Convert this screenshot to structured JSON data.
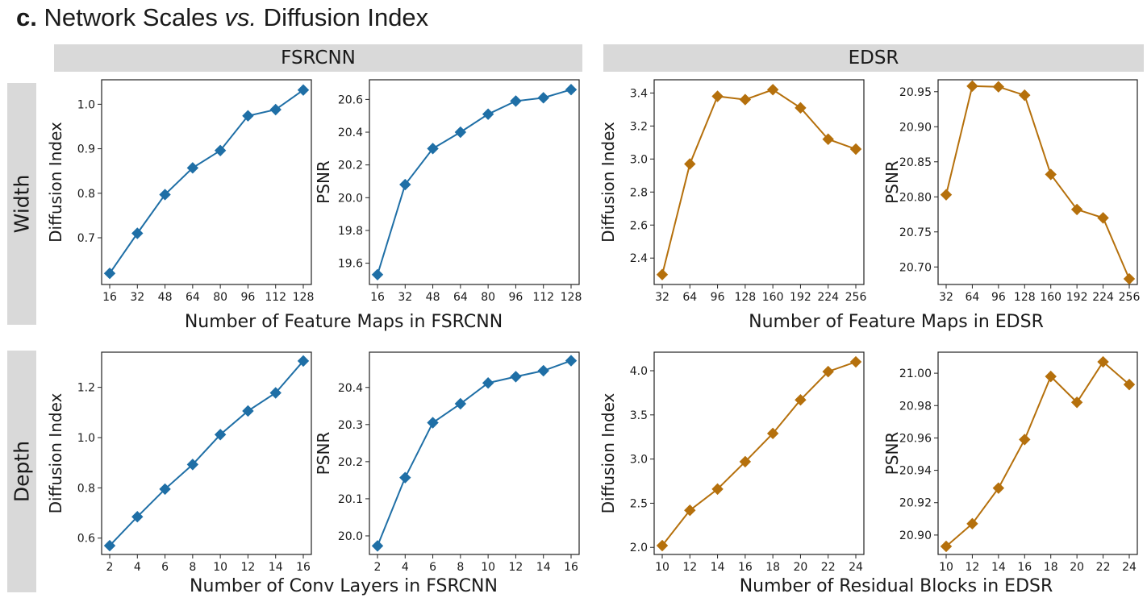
{
  "figure": {
    "title_prefix": "c.",
    "title_main": " Network Scales ",
    "title_vs": "vs.",
    "title_suffix": " Diffusion Index"
  },
  "column_headers": [
    "FSRCNN",
    "EDSR"
  ],
  "row_headers": [
    "Width",
    "Depth"
  ],
  "group_xlabels": [
    "Number of Feature Maps in FSRCNN",
    "Number of Feature Maps in EDSR",
    "Number of Conv Layers in FSRCNN",
    "Number of Residual Blocks in EDSR"
  ],
  "colors": {
    "fsrcnn": "#1f6fa6",
    "edsr": "#b5700c",
    "header_bg": "#d9d9d9"
  },
  "chart_data": [
    {
      "type": "line",
      "ylabel": "Diffusion Index",
      "color": "#1f6fa6",
      "categories": [
        "16",
        "32",
        "48",
        "64",
        "80",
        "96",
        "112",
        "128"
      ],
      "values": [
        0.62,
        0.71,
        0.797,
        0.857,
        0.896,
        0.974,
        0.988,
        1.032
      ],
      "ylim": [
        0.595,
        1.055
      ],
      "yticks": [
        0.7,
        0.8,
        0.9,
        1.0
      ],
      "ytick_labels": [
        "0.7",
        "0.8",
        "0.9",
        "1.0"
      ]
    },
    {
      "type": "line",
      "ylabel": "PSNR",
      "color": "#1f6fa6",
      "categories": [
        "16",
        "32",
        "48",
        "64",
        "80",
        "96",
        "112",
        "128"
      ],
      "values": [
        19.53,
        20.08,
        20.3,
        20.4,
        20.51,
        20.59,
        20.61,
        20.66
      ],
      "ylim": [
        19.47,
        20.72
      ],
      "yticks": [
        19.6,
        19.8,
        20.0,
        20.2,
        20.4,
        20.6
      ],
      "ytick_labels": [
        "19.6",
        "19.8",
        "20.0",
        "20.2",
        "20.4",
        "20.6"
      ]
    },
    {
      "type": "line",
      "ylabel": "Diffusion Index",
      "color": "#b5700c",
      "categories": [
        "32",
        "64",
        "96",
        "128",
        "160",
        "192",
        "224",
        "256"
      ],
      "values": [
        2.3,
        2.97,
        3.38,
        3.36,
        3.42,
        3.31,
        3.12,
        3.06
      ],
      "ylim": [
        2.24,
        3.48
      ],
      "yticks": [
        2.4,
        2.6,
        2.8,
        3.0,
        3.2,
        3.4
      ],
      "ytick_labels": [
        "2.4",
        "2.6",
        "2.8",
        "3.0",
        "3.2",
        "3.4"
      ]
    },
    {
      "type": "line",
      "ylabel": "PSNR",
      "color": "#b5700c",
      "categories": [
        "32",
        "64",
        "96",
        "128",
        "160",
        "192",
        "224",
        "256"
      ],
      "values": [
        20.803,
        20.958,
        20.957,
        20.945,
        20.832,
        20.782,
        20.77,
        20.683
      ],
      "ylim": [
        20.675,
        20.967
      ],
      "yticks": [
        20.7,
        20.75,
        20.8,
        20.85,
        20.9,
        20.95
      ],
      "ytick_labels": [
        "20.70",
        "20.75",
        "20.80",
        "20.85",
        "20.90",
        "20.95"
      ]
    },
    {
      "type": "line",
      "ylabel": "Diffusion Index",
      "color": "#1f6fa6",
      "categories": [
        "2",
        "4",
        "6",
        "8",
        "10",
        "12",
        "14",
        "16"
      ],
      "values": [
        0.57,
        0.685,
        0.795,
        0.893,
        1.012,
        1.106,
        1.178,
        1.305
      ],
      "ylim": [
        0.535,
        1.34
      ],
      "yticks": [
        0.6,
        0.8,
        1.0,
        1.2
      ],
      "ytick_labels": [
        "0.6",
        "0.8",
        "1.0",
        "1.2"
      ]
    },
    {
      "type": "line",
      "ylabel": "PSNR",
      "color": "#1f6fa6",
      "categories": [
        "2",
        "4",
        "6",
        "8",
        "10",
        "12",
        "14",
        "16"
      ],
      "values": [
        19.973,
        20.157,
        20.305,
        20.356,
        20.412,
        20.429,
        20.445,
        20.472
      ],
      "ylim": [
        19.95,
        20.495
      ],
      "yticks": [
        20.0,
        20.1,
        20.2,
        20.3,
        20.4
      ],
      "ytick_labels": [
        "20.0",
        "20.1",
        "20.2",
        "20.3",
        "20.4"
      ]
    },
    {
      "type": "line",
      "ylabel": "Diffusion Index",
      "color": "#b5700c",
      "categories": [
        "10",
        "12",
        "14",
        "16",
        "18",
        "20",
        "22",
        "24"
      ],
      "values": [
        2.02,
        2.42,
        2.66,
        2.97,
        3.29,
        3.67,
        3.99,
        4.1
      ],
      "ylim": [
        1.92,
        4.21
      ],
      "yticks": [
        2.0,
        2.5,
        3.0,
        3.5,
        4.0
      ],
      "ytick_labels": [
        "2.0",
        "2.5",
        "3.0",
        "3.5",
        "4.0"
      ]
    },
    {
      "type": "line",
      "ylabel": "PSNR",
      "color": "#b5700c",
      "categories": [
        "10",
        "12",
        "14",
        "16",
        "18",
        "20",
        "22",
        "24"
      ],
      "values": [
        20.893,
        20.907,
        20.929,
        20.959,
        20.998,
        20.982,
        21.007,
        20.993
      ],
      "ylim": [
        20.888,
        21.013
      ],
      "yticks": [
        20.9,
        20.92,
        20.94,
        20.96,
        20.98,
        21.0
      ],
      "ytick_labels": [
        "20.90",
        "20.92",
        "20.94",
        "20.96",
        "20.98",
        "21.00"
      ]
    }
  ]
}
